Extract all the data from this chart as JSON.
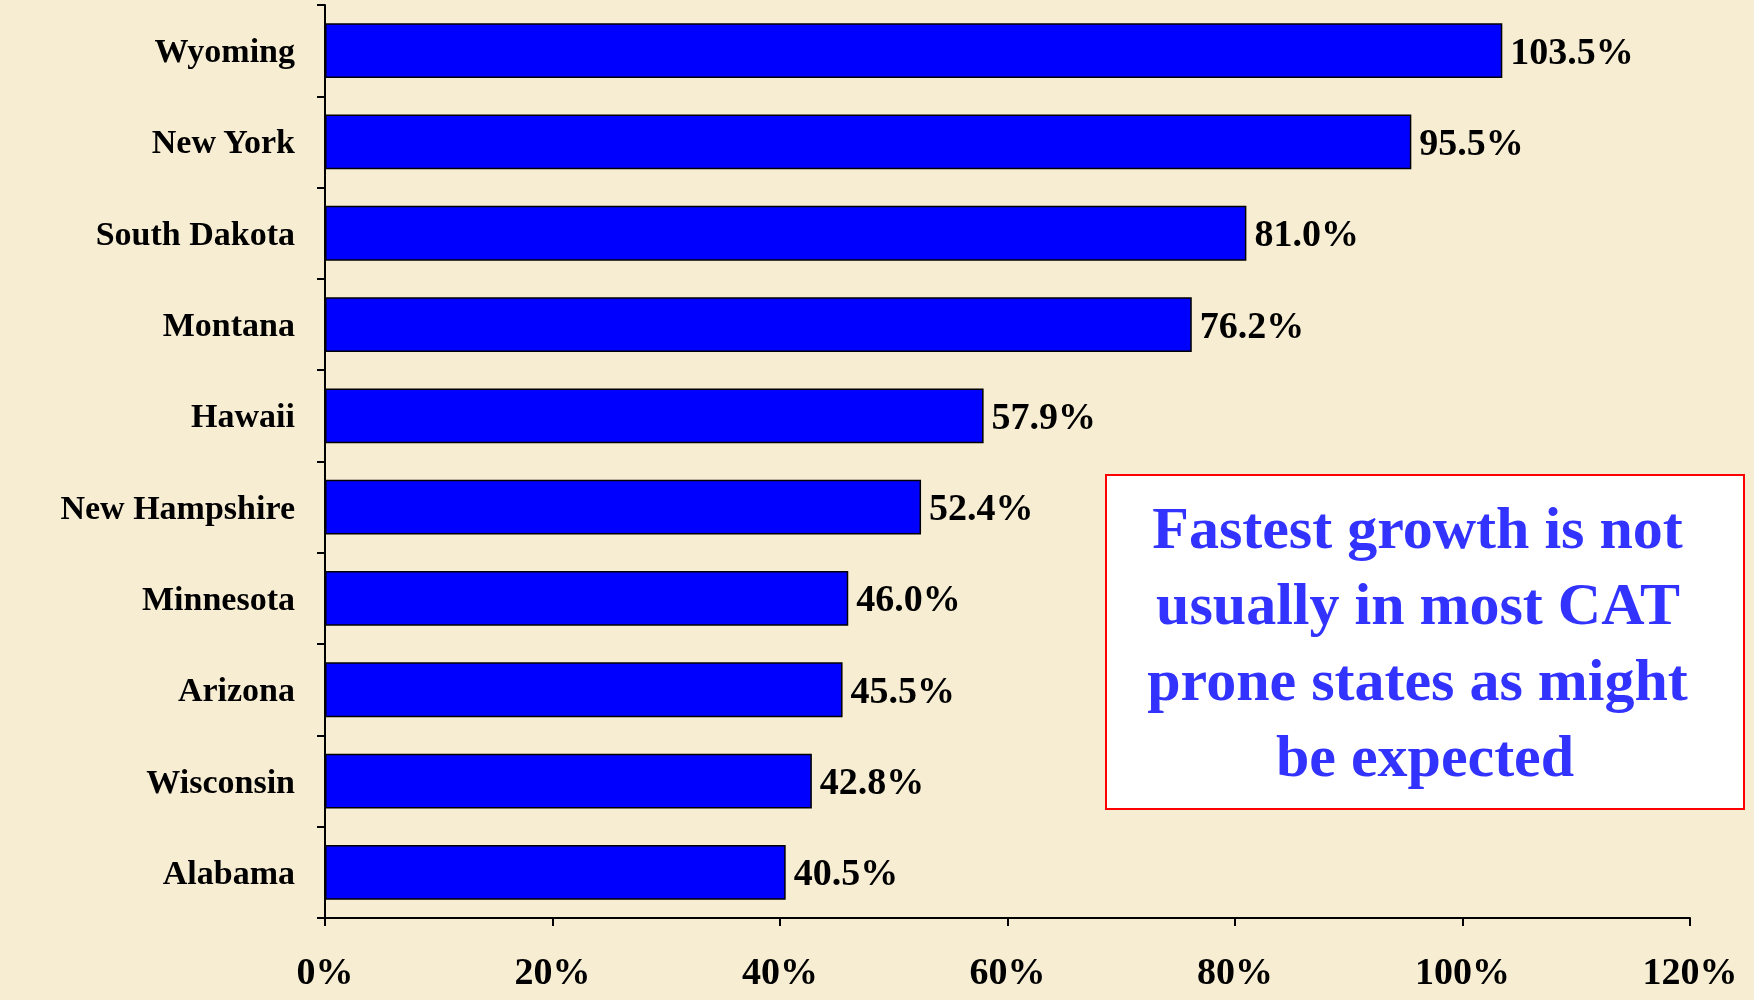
{
  "chart_data": {
    "type": "bar",
    "orientation": "horizontal",
    "categories": [
      "Wyoming",
      "New York",
      "South Dakota",
      "Montana",
      "Hawaii",
      "New Hampshire",
      "Minnesota",
      "Arizona",
      "Wisconsin",
      "Alabama"
    ],
    "values": [
      103.5,
      95.5,
      81.0,
      76.2,
      57.9,
      52.4,
      46.0,
      45.5,
      42.8,
      40.5
    ],
    "value_labels": [
      "103.5%",
      "95.5%",
      "81.0%",
      "76.2%",
      "57.9%",
      "52.4%",
      "46.0%",
      "45.5%",
      "42.8%",
      "40.5%"
    ],
    "color": "#0000ff",
    "xlim": [
      0,
      120
    ],
    "xticks": [
      {
        "value": 0,
        "label": "0%"
      },
      {
        "value": 20,
        "label": "20%"
      },
      {
        "value": 40,
        "label": "40%"
      },
      {
        "value": 60,
        "label": "60%"
      },
      {
        "value": 80,
        "label": "80%"
      },
      {
        "value": 100,
        "label": "100%"
      },
      {
        "value": 120,
        "label": "120%"
      }
    ],
    "annotations": [
      "Fastest growth is not usually in most CAT prone states as might be expected"
    ],
    "grid": false
  }
}
